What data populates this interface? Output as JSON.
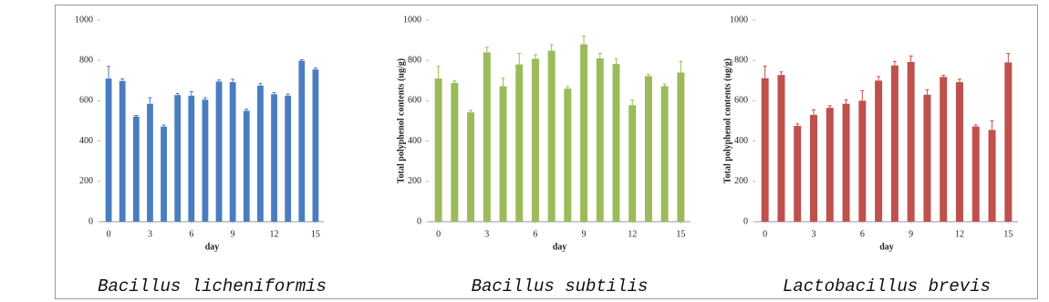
{
  "chart_data": [
    {
      "type": "bar",
      "title": "Bacillus licheniformis",
      "x_label": "day",
      "x": [
        0,
        1,
        2,
        3,
        4,
        5,
        6,
        7,
        8,
        9,
        10,
        11,
        12,
        13,
        14,
        15
      ],
      "values": [
        710,
        698,
        522,
        585,
        472,
        628,
        625,
        605,
        695,
        692,
        550,
        675,
        632,
        625,
        798,
        755
      ],
      "errors": [
        60,
        10,
        5,
        30,
        8,
        8,
        20,
        10,
        8,
        15,
        8,
        10,
        8,
        8,
        5,
        8
      ],
      "color": "#4a7dc0",
      "xlim": [
        -0.6,
        15.6
      ],
      "ylim": [
        0,
        1000
      ],
      "xticks": [
        0,
        3,
        6,
        9,
        12,
        15
      ],
      "yticks": [
        0,
        200,
        400,
        600,
        800,
        1000
      ]
    },
    {
      "type": "bar",
      "title": "Bacillus subtilis",
      "x_label": "day",
      "y_label": "Total polyphenol contents (ug/g)",
      "x": [
        0,
        1,
        2,
        3,
        4,
        5,
        6,
        7,
        8,
        9,
        10,
        11,
        12,
        13,
        14,
        15
      ],
      "values": [
        710,
        688,
        542,
        840,
        672,
        780,
        808,
        848,
        660,
        880,
        810,
        782,
        578,
        722,
        672,
        740
      ],
      "errors": [
        60,
        10,
        10,
        25,
        40,
        55,
        20,
        30,
        10,
        40,
        25,
        25,
        25,
        8,
        10,
        55
      ],
      "color": "#9bbb59",
      "xlim": [
        -0.6,
        15.6
      ],
      "ylim": [
        0,
        1000
      ],
      "xticks": [
        0,
        3,
        6,
        9,
        12,
        15
      ],
      "yticks": [
        0,
        200,
        400,
        600,
        800,
        1000
      ]
    },
    {
      "type": "bar",
      "title": "Lactobacillus brevis",
      "x_label": "day",
      "y_label": "Total polyphenol contents (ug/g)",
      "x": [
        0,
        1,
        2,
        3,
        4,
        5,
        6,
        7,
        8,
        9,
        10,
        11,
        12,
        13,
        14,
        15
      ],
      "values": [
        712,
        728,
        475,
        530,
        565,
        585,
        600,
        700,
        775,
        792,
        630,
        718,
        692,
        472,
        455,
        790
      ],
      "errors": [
        60,
        15,
        10,
        25,
        10,
        20,
        50,
        20,
        20,
        30,
        25,
        8,
        15,
        8,
        45,
        45
      ],
      "color": "#c0504d",
      "xlim": [
        -0.6,
        15.6
      ],
      "ylim": [
        0,
        1000
      ],
      "xticks": [
        0,
        3,
        6,
        9,
        12,
        15
      ],
      "yticks": [
        0,
        200,
        400,
        600,
        800,
        1000
      ]
    }
  ]
}
